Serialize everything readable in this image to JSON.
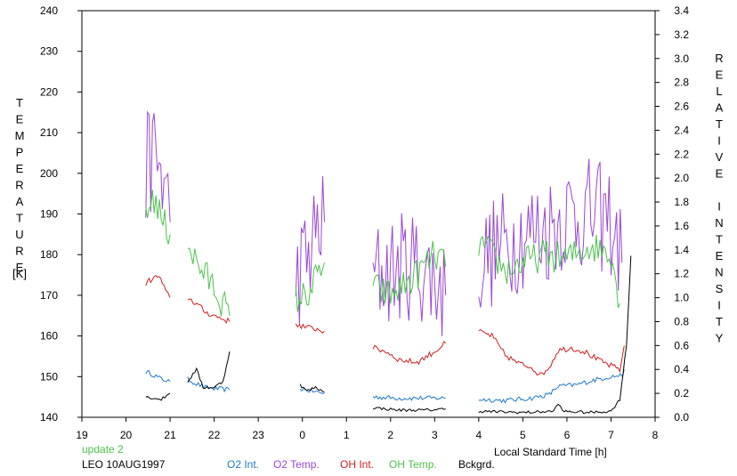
{
  "chart_data": {
    "type": "line",
    "xlabel": "Local Standard Time [h]",
    "ylabel_left": "TEMPERATURE",
    "ylabel_left_unit": "[K]",
    "ylabel_right": "RELATIVE INTENSITY",
    "x_ticks": [
      19,
      20,
      21,
      22,
      23,
      0,
      1,
      2,
      3,
      4,
      5,
      6,
      7,
      8
    ],
    "x_range_hours": [
      19,
      32
    ],
    "y_left_ticks": [
      140,
      150,
      160,
      170,
      180,
      190,
      200,
      210,
      220,
      230,
      240
    ],
    "y_left_range": [
      140,
      240
    ],
    "y_right_ticks": [
      "0.0",
      "0.2",
      "0.4",
      "0.6",
      "0.8",
      "1.0",
      "1.2",
      "1.4",
      "1.6",
      "1.8",
      "2.0",
      "2.2",
      "2.4",
      "2.6",
      "2.8",
      "3.0",
      "3.2",
      "3.4"
    ],
    "y_right_range": [
      0,
      3.4
    ],
    "grid": false,
    "annotations": {
      "update": "update 2",
      "station": "LEO 10AUG1997"
    },
    "legend_position": "bottom",
    "series": [
      {
        "name": "O2 Int.",
        "axis": "right",
        "color": "#1e78c8",
        "noise": 0.02,
        "segments": [
          [
            [
              20.45,
              0.38
            ],
            [
              20.6,
              0.36
            ],
            [
              20.8,
              0.32
            ],
            [
              21.0,
              0.3
            ]
          ],
          [
            [
              21.4,
              0.32
            ],
            [
              21.6,
              0.28
            ],
            [
              21.8,
              0.25
            ],
            [
              22.0,
              0.24
            ],
            [
              22.35,
              0.23
            ]
          ],
          [
            [
              23.95,
              0.24
            ],
            [
              24.2,
              0.22
            ],
            [
              24.5,
              0.2
            ]
          ],
          [
            [
              25.6,
              0.17
            ],
            [
              26.2,
              0.16
            ],
            [
              26.8,
              0.16
            ],
            [
              27.25,
              0.16
            ]
          ],
          [
            [
              28.0,
              0.15
            ],
            [
              28.6,
              0.14
            ],
            [
              29.2,
              0.16
            ],
            [
              29.6,
              0.19
            ],
            [
              29.8,
              0.26
            ],
            [
              30.2,
              0.27
            ],
            [
              30.6,
              0.31
            ],
            [
              31.0,
              0.34
            ],
            [
              31.25,
              0.35
            ],
            [
              31.3,
              0.4
            ]
          ]
        ]
      },
      {
        "name": "O2 Temp.",
        "axis": "left",
        "color": "#9a46d6",
        "noise": 14,
        "segments": [
          [
            [
              20.45,
              200
            ],
            [
              20.6,
              205
            ],
            [
              20.75,
              202
            ],
            [
              20.9,
              195
            ],
            [
              21.0,
              188
            ]
          ],
          [
            [
              23.85,
              175
            ],
            [
              24.1,
              178
            ],
            [
              24.3,
              185
            ],
            [
              24.5,
              188
            ]
          ],
          [
            [
              25.6,
              175
            ],
            [
              26.0,
              176
            ],
            [
              26.5,
              178
            ],
            [
              27.0,
              174
            ],
            [
              27.25,
              170
            ]
          ],
          [
            [
              28.0,
              178
            ],
            [
              28.5,
              182
            ],
            [
              29.0,
              185
            ],
            [
              29.5,
              186
            ],
            [
              30.0,
              190
            ],
            [
              30.5,
              190
            ],
            [
              31.0,
              188
            ],
            [
              31.25,
              178
            ]
          ]
        ]
      },
      {
        "name": "OH Int.",
        "axis": "right",
        "color": "#d21e1e",
        "noise": 0.025,
        "segments": [
          [
            [
              20.45,
              1.12
            ],
            [
              20.6,
              1.16
            ],
            [
              20.75,
              1.18
            ],
            [
              20.9,
              1.05
            ],
            [
              21.0,
              1.0
            ]
          ],
          [
            [
              21.4,
              1.0
            ],
            [
              21.6,
              0.95
            ],
            [
              21.8,
              0.88
            ],
            [
              22.0,
              0.85
            ],
            [
              22.35,
              0.8
            ]
          ],
          [
            [
              23.85,
              0.78
            ],
            [
              24.1,
              0.75
            ],
            [
              24.3,
              0.74
            ],
            [
              24.5,
              0.72
            ]
          ],
          [
            [
              25.6,
              0.58
            ],
            [
              25.9,
              0.55
            ],
            [
              26.2,
              0.48
            ],
            [
              26.6,
              0.46
            ],
            [
              27.0,
              0.55
            ],
            [
              27.25,
              0.62
            ]
          ],
          [
            [
              28.0,
              0.72
            ],
            [
              28.3,
              0.68
            ],
            [
              28.6,
              0.52
            ],
            [
              28.9,
              0.45
            ],
            [
              29.2,
              0.42
            ],
            [
              29.4,
              0.35
            ],
            [
              29.6,
              0.42
            ],
            [
              29.8,
              0.56
            ],
            [
              30.1,
              0.58
            ],
            [
              30.4,
              0.55
            ],
            [
              30.7,
              0.48
            ],
            [
              31.0,
              0.43
            ],
            [
              31.2,
              0.4
            ],
            [
              31.3,
              0.6
            ]
          ]
        ]
      },
      {
        "name": "OH Temp.",
        "axis": "left",
        "color": "#4cc24c",
        "noise": 4,
        "segments": [
          [
            [
              20.45,
              188
            ],
            [
              20.6,
              195
            ],
            [
              20.8,
              189
            ],
            [
              21.0,
              185
            ]
          ],
          [
            [
              21.4,
              183
            ],
            [
              21.6,
              178
            ],
            [
              21.8,
              175
            ],
            [
              22.0,
              172
            ],
            [
              22.2,
              168
            ],
            [
              22.35,
              165
            ]
          ],
          [
            [
              23.85,
              169
            ],
            [
              24.1,
              170
            ],
            [
              24.3,
              174
            ],
            [
              24.5,
              178
            ]
          ],
          [
            [
              25.6,
              172
            ],
            [
              26.0,
              170
            ],
            [
              26.5,
              174
            ],
            [
              27.0,
              180
            ],
            [
              27.25,
              177
            ]
          ],
          [
            [
              28.0,
              183
            ],
            [
              28.3,
              180
            ],
            [
              28.6,
              176
            ],
            [
              29.0,
              178
            ],
            [
              29.5,
              180
            ],
            [
              30.0,
              179
            ],
            [
              30.5,
              182
            ],
            [
              31.0,
              181
            ],
            [
              31.2,
              168
            ]
          ]
        ]
      },
      {
        "name": "Bckgrd.",
        "axis": "right",
        "color": "#000000",
        "noise": 0.012,
        "segments": [
          [
            [
              20.45,
              0.17
            ],
            [
              20.8,
              0.15
            ],
            [
              21.0,
              0.2
            ]
          ],
          [
            [
              21.4,
              0.3
            ],
            [
              21.6,
              0.4
            ],
            [
              21.75,
              0.25
            ],
            [
              22.0,
              0.25
            ],
            [
              22.2,
              0.3
            ],
            [
              22.35,
              0.55
            ]
          ],
          [
            [
              23.95,
              0.27
            ],
            [
              24.1,
              0.22
            ],
            [
              24.3,
              0.25
            ],
            [
              24.5,
              0.21
            ]
          ],
          [
            [
              25.6,
              0.08
            ],
            [
              26.2,
              0.06
            ],
            [
              26.8,
              0.06
            ],
            [
              27.25,
              0.07
            ]
          ],
          [
            [
              28.0,
              0.05
            ],
            [
              29.0,
              0.04
            ],
            [
              29.7,
              0.05
            ],
            [
              29.8,
              0.12
            ],
            [
              29.9,
              0.05
            ],
            [
              30.5,
              0.04
            ],
            [
              31.0,
              0.05
            ],
            [
              31.2,
              0.15
            ],
            [
              31.35,
              0.6
            ],
            [
              31.45,
              1.35
            ]
          ]
        ]
      }
    ]
  }
}
